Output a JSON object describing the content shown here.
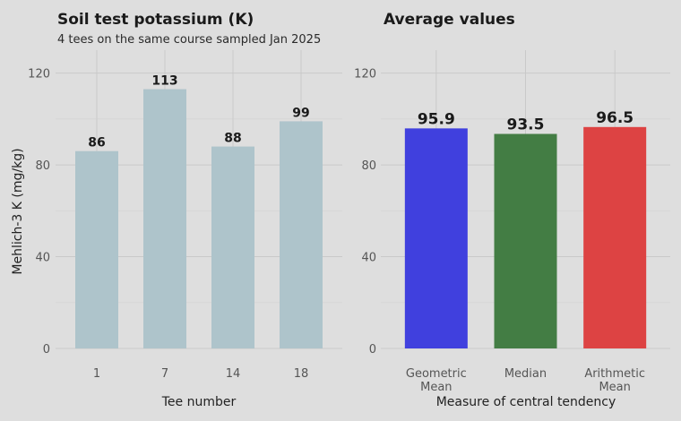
{
  "chart_data": [
    {
      "type": "bar",
      "title": "Soil test potassium (K)",
      "subtitle": "4 tees on the same course sampled Jan 2025",
      "xlabel": "Tee number",
      "ylabel": "Mehlich-3 K (mg/kg)",
      "categories": [
        "1",
        "7",
        "14",
        "18"
      ],
      "values": [
        86,
        113,
        88,
        99
      ],
      "data_labels": [
        "86",
        "113",
        "88",
        "99"
      ],
      "ylim": [
        0,
        130
      ],
      "yticks": [
        0,
        40,
        80,
        120
      ],
      "bar_colors": [
        "#aec4cb",
        "#aec4cb",
        "#aec4cb",
        "#aec4cb"
      ],
      "grid": true
    },
    {
      "type": "bar",
      "title": "Average values",
      "xlabel": "Measure of central tendency",
      "categories": [
        [
          "Geometric",
          "Mean"
        ],
        [
          "Median"
        ],
        [
          "Arithmetic",
          "Mean"
        ]
      ],
      "values": [
        95.9,
        93.5,
        96.5
      ],
      "data_labels": [
        "95.9",
        "93.5",
        "96.5"
      ],
      "ylim": [
        0,
        130
      ],
      "yticks": [
        0,
        40,
        80,
        120
      ],
      "bar_colors": [
        "#4040de",
        "#437d44",
        "#dd4343"
      ],
      "grid": true
    }
  ]
}
